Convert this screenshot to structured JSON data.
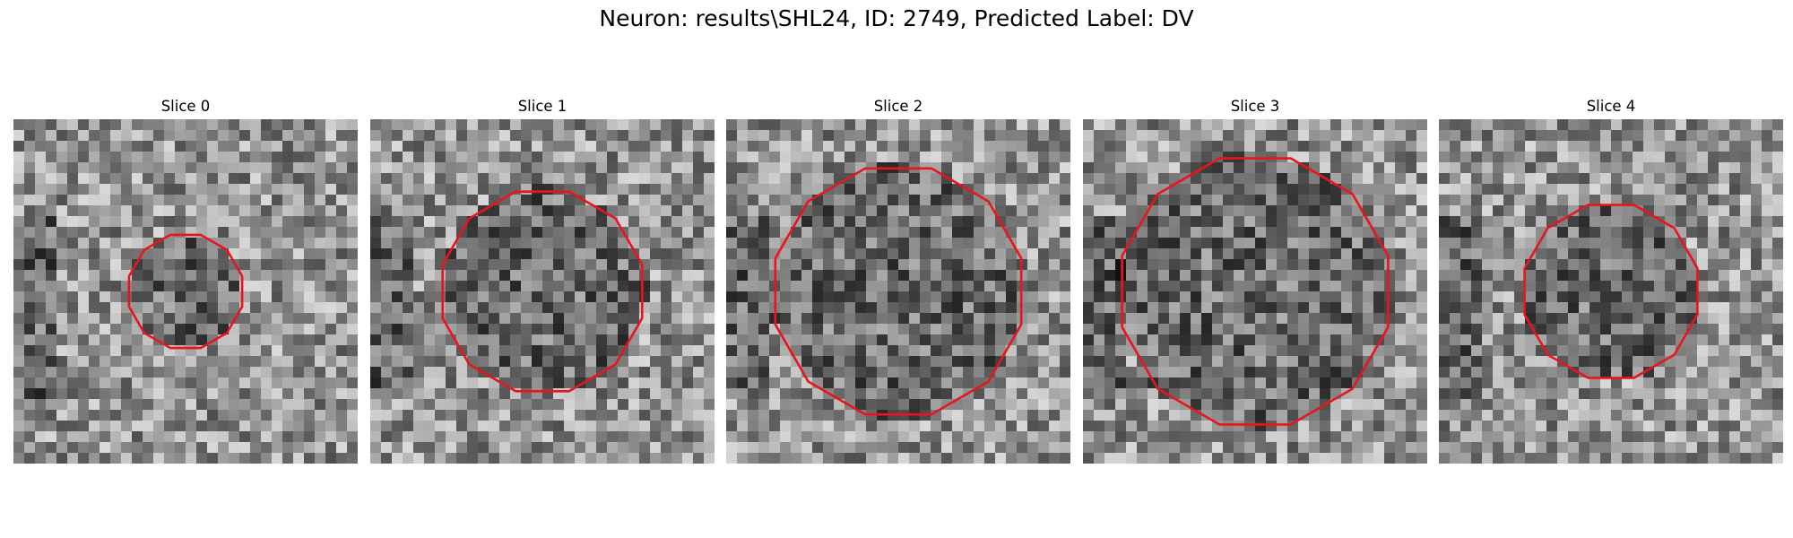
{
  "figure": {
    "title": "Neuron: results\\SHL24, ID: 2749, Predicted Label: DV"
  },
  "slices": [
    {
      "title": "Slice 0",
      "seed": 11,
      "contour_radius": 0.17
    },
    {
      "title": "Slice 1",
      "seed": 23,
      "contour_radius": 0.3
    },
    {
      "title": "Slice 2",
      "seed": 37,
      "contour_radius": 0.37
    },
    {
      "title": "Slice 3",
      "seed": 41,
      "contour_radius": 0.4
    },
    {
      "title": "Slice 4",
      "seed": 53,
      "contour_radius": 0.26
    }
  ],
  "colors": {
    "contour": "#e8161b",
    "background": "#ffffff"
  }
}
